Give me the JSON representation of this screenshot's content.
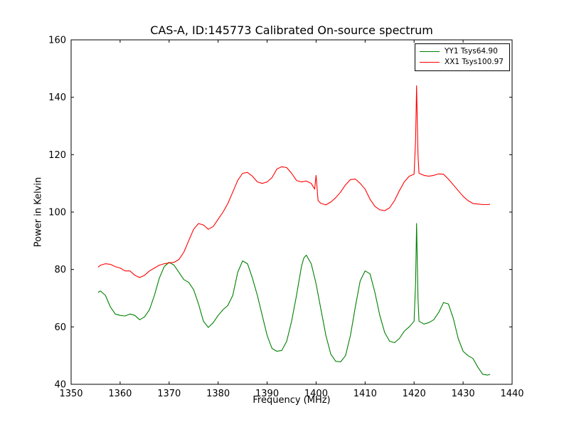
{
  "chart_data": {
    "type": "line",
    "title": "CAS-A, ID:145773 Calibrated On-source spectrum",
    "xlabel": "Frequency (MHz)",
    "ylabel": "Power in Kelvin",
    "xlim": [
      1350,
      1440
    ],
    "ylim": [
      40,
      160
    ],
    "xticks": [
      1350,
      1360,
      1370,
      1380,
      1390,
      1400,
      1410,
      1420,
      1430,
      1440
    ],
    "yticks": [
      40,
      60,
      80,
      100,
      120,
      140,
      160
    ],
    "grid": false,
    "legend_position": "upper right",
    "series": [
      {
        "name": "YY1 Tsys64.90",
        "color": "#008000",
        "points": [
          [
            1355.5,
            72
          ],
          [
            1356,
            72.5
          ],
          [
            1357,
            71
          ],
          [
            1358,
            67
          ],
          [
            1359,
            64.5
          ],
          [
            1360,
            64
          ],
          [
            1361,
            63.8
          ],
          [
            1362,
            64.5
          ],
          [
            1363,
            64
          ],
          [
            1364,
            62.5
          ],
          [
            1365,
            63.5
          ],
          [
            1366,
            66
          ],
          [
            1367,
            71
          ],
          [
            1368,
            77
          ],
          [
            1369,
            81
          ],
          [
            1370,
            82.5
          ],
          [
            1371,
            81.5
          ],
          [
            1372,
            79
          ],
          [
            1373,
            76.5
          ],
          [
            1374,
            75.5
          ],
          [
            1375,
            73
          ],
          [
            1376,
            68
          ],
          [
            1377,
            62
          ],
          [
            1378,
            59.8
          ],
          [
            1379,
            61.5
          ],
          [
            1380,
            64
          ],
          [
            1381,
            66
          ],
          [
            1382,
            67.5
          ],
          [
            1383,
            71
          ],
          [
            1384,
            79
          ],
          [
            1385,
            83
          ],
          [
            1386,
            82
          ],
          [
            1387,
            77
          ],
          [
            1388,
            71
          ],
          [
            1389,
            64
          ],
          [
            1390,
            57
          ],
          [
            1391,
            52.5
          ],
          [
            1392,
            51.5
          ],
          [
            1393,
            51.8
          ],
          [
            1394,
            55
          ],
          [
            1395,
            62
          ],
          [
            1396,
            71
          ],
          [
            1397,
            81
          ],
          [
            1397.5,
            84
          ],
          [
            1398,
            85
          ],
          [
            1399,
            82
          ],
          [
            1400,
            75
          ],
          [
            1401,
            66
          ],
          [
            1402,
            57
          ],
          [
            1403,
            50.5
          ],
          [
            1404,
            48
          ],
          [
            1405,
            47.8
          ],
          [
            1406,
            50
          ],
          [
            1407,
            57
          ],
          [
            1408,
            67
          ],
          [
            1409,
            76
          ],
          [
            1410,
            79.5
          ],
          [
            1411,
            78.5
          ],
          [
            1412,
            72
          ],
          [
            1413,
            64
          ],
          [
            1414,
            58
          ],
          [
            1415,
            55
          ],
          [
            1416,
            54.5
          ],
          [
            1417,
            56
          ],
          [
            1418,
            58.5
          ],
          [
            1419,
            60
          ],
          [
            1420,
            62
          ],
          [
            1420.3,
            75
          ],
          [
            1420.5,
            96
          ],
          [
            1420.8,
            70
          ],
          [
            1421,
            62
          ],
          [
            1422,
            61
          ],
          [
            1423,
            61.5
          ],
          [
            1424,
            62.5
          ],
          [
            1425,
            65
          ],
          [
            1426,
            68.5
          ],
          [
            1427,
            68
          ],
          [
            1428,
            63
          ],
          [
            1429,
            56
          ],
          [
            1430,
            51.5
          ],
          [
            1431,
            50
          ],
          [
            1432,
            49
          ],
          [
            1433,
            46
          ],
          [
            1434,
            43.5
          ],
          [
            1435,
            43.2
          ],
          [
            1435.5,
            43.5
          ]
        ]
      },
      {
        "name": "XX1 Tsys100.97",
        "color": "#ff0000",
        "points": [
          [
            1355.5,
            80.8
          ],
          [
            1356,
            81.5
          ],
          [
            1357,
            82
          ],
          [
            1358,
            81.8
          ],
          [
            1359,
            81
          ],
          [
            1360,
            80.5
          ],
          [
            1361,
            79.5
          ],
          [
            1362,
            79.5
          ],
          [
            1363,
            78
          ],
          [
            1364,
            77.2
          ],
          [
            1365,
            78
          ],
          [
            1366,
            79.5
          ],
          [
            1367,
            80.5
          ],
          [
            1368,
            81.5
          ],
          [
            1369,
            82
          ],
          [
            1370,
            82.3
          ],
          [
            1371,
            82.5
          ],
          [
            1372,
            83.5
          ],
          [
            1373,
            86
          ],
          [
            1374,
            90
          ],
          [
            1375,
            94
          ],
          [
            1376,
            96
          ],
          [
            1377,
            95.5
          ],
          [
            1378,
            94
          ],
          [
            1379,
            95
          ],
          [
            1380,
            97.5
          ],
          [
            1381,
            100
          ],
          [
            1382,
            103
          ],
          [
            1383,
            107
          ],
          [
            1384,
            111
          ],
          [
            1385,
            113.5
          ],
          [
            1386,
            113.8
          ],
          [
            1387,
            112.5
          ],
          [
            1388,
            110.5
          ],
          [
            1389,
            110
          ],
          [
            1390,
            110.5
          ],
          [
            1391,
            112
          ],
          [
            1392,
            115
          ],
          [
            1393,
            115.8
          ],
          [
            1394,
            115.5
          ],
          [
            1395,
            113.5
          ],
          [
            1396,
            111
          ],
          [
            1397,
            110.5
          ],
          [
            1398,
            110.8
          ],
          [
            1399,
            110
          ],
          [
            1399.7,
            108
          ],
          [
            1400,
            112.8
          ],
          [
            1400.4,
            104
          ],
          [
            1401,
            103
          ],
          [
            1402,
            102.5
          ],
          [
            1403,
            103.5
          ],
          [
            1404,
            105
          ],
          [
            1405,
            107
          ],
          [
            1406,
            109.5
          ],
          [
            1407,
            111.3
          ],
          [
            1408,
            111.5
          ],
          [
            1409,
            110
          ],
          [
            1410,
            108
          ],
          [
            1411,
            104.5
          ],
          [
            1412,
            102
          ],
          [
            1413,
            100.8
          ],
          [
            1414,
            100.5
          ],
          [
            1415,
            101.5
          ],
          [
            1416,
            104
          ],
          [
            1417,
            107.5
          ],
          [
            1418,
            110.5
          ],
          [
            1419,
            112.5
          ],
          [
            1420,
            113.2
          ],
          [
            1420.3,
            125
          ],
          [
            1420.5,
            144
          ],
          [
            1420.8,
            120
          ],
          [
            1421,
            113.5
          ],
          [
            1422,
            112.8
          ],
          [
            1423,
            112.5
          ],
          [
            1424,
            112.8
          ],
          [
            1425,
            113.3
          ],
          [
            1426,
            113.2
          ],
          [
            1427,
            111.5
          ],
          [
            1428,
            109.5
          ],
          [
            1429,
            107.5
          ],
          [
            1430,
            105.5
          ],
          [
            1431,
            104
          ],
          [
            1432,
            103
          ],
          [
            1433,
            102.8
          ],
          [
            1434,
            102.6
          ],
          [
            1435,
            102.6
          ],
          [
            1435.5,
            102.7
          ]
        ]
      }
    ]
  }
}
